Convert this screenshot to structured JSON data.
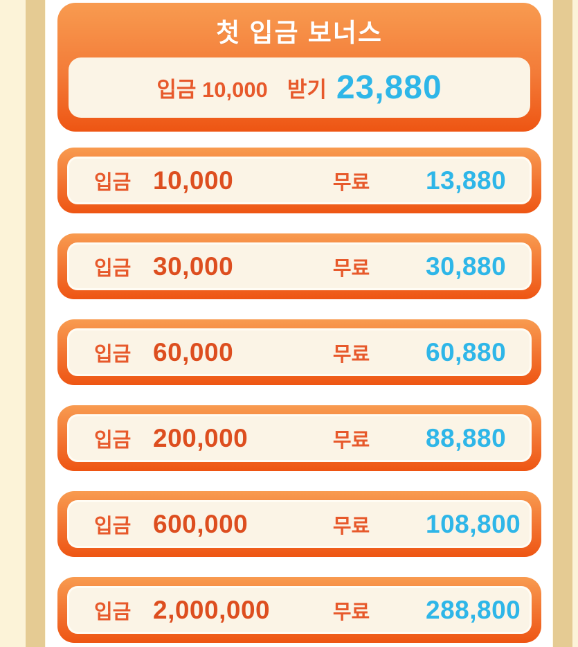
{
  "colors": {
    "accent_orange": "#F89B50",
    "deep_orange": "#EE5513",
    "text_orange": "#E7592B",
    "number_orange": "#DD4E1F",
    "bonus_blue": "#2EB6E8",
    "card_cream": "#FBF4E6",
    "side_cream": "#FCF3D8",
    "side_strip": "#E5CB93"
  },
  "header": {
    "title": "첫 입금 보너스",
    "deposit_text": "입금 10,000",
    "claim_label": "받기",
    "bonus_amount": "23,880"
  },
  "rows": [
    {
      "deposit_label": "입금",
      "deposit": "10,000",
      "free_label": "무료",
      "bonus": "13,880"
    },
    {
      "deposit_label": "입금",
      "deposit": "30,000",
      "free_label": "무료",
      "bonus": "30,880"
    },
    {
      "deposit_label": "입금",
      "deposit": "60,000",
      "free_label": "무료",
      "bonus": "60,880"
    },
    {
      "deposit_label": "입금",
      "deposit": "200,000",
      "free_label": "무료",
      "bonus": "88,880"
    },
    {
      "deposit_label": "입금",
      "deposit": "600,000",
      "free_label": "무료",
      "bonus": "108,800"
    },
    {
      "deposit_label": "입금",
      "deposit": "2,000,000",
      "free_label": "무료",
      "bonus": "288,800"
    }
  ]
}
